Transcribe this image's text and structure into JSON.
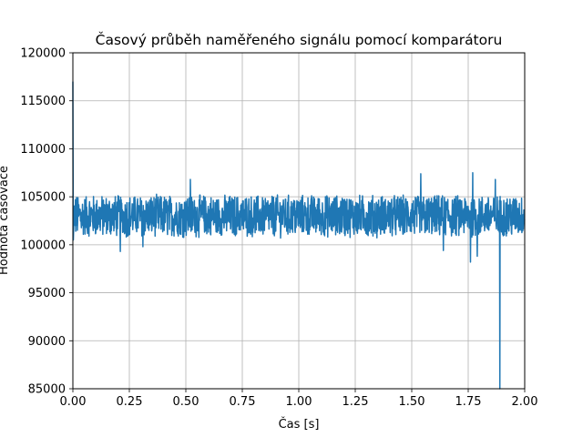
{
  "chart_data": {
    "type": "line",
    "title": "Časový průběh naměřeného signálu pomocí komparátoru",
    "xlabel": "Čas [s]",
    "ylabel": "Hodnota časovače",
    "xlim": [
      0.0,
      2.0
    ],
    "ylim": [
      85000,
      120000
    ],
    "xticks": [
      "0.00",
      "0.25",
      "0.50",
      "0.75",
      "1.00",
      "1.25",
      "1.50",
      "1.75",
      "2.00"
    ],
    "yticks": [
      "85000",
      "90000",
      "95000",
      "100000",
      "105000",
      "110000",
      "115000",
      "120000"
    ],
    "grid": true,
    "line_color": "#1f77b4",
    "series": [
      {
        "baseline": 103000,
        "noise_band": [
          101000,
          105500
        ],
        "notable_points": [
          {
            "x": 0.0,
            "y": 117000
          },
          {
            "x": 0.002,
            "y": 100500
          },
          {
            "x": 0.21,
            "y": 99300
          },
          {
            "x": 0.31,
            "y": 99800
          },
          {
            "x": 0.52,
            "y": 106800
          },
          {
            "x": 1.54,
            "y": 107400
          },
          {
            "x": 1.64,
            "y": 99400
          },
          {
            "x": 1.76,
            "y": 98200
          },
          {
            "x": 1.77,
            "y": 107500
          },
          {
            "x": 1.79,
            "y": 98800
          },
          {
            "x": 1.89,
            "y": 85000
          },
          {
            "x": 1.87,
            "y": 106800
          }
        ]
      }
    ]
  }
}
